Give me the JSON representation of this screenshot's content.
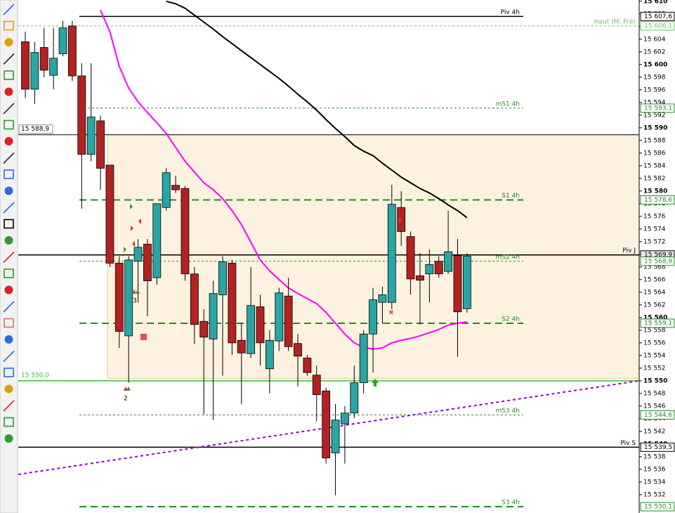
{
  "chart_data": {
    "type": "candlestick",
    "up_color": "#2aa5a5",
    "down_color": "#b32222",
    "ylim": [
      15529.1,
      15610.2
    ],
    "yticks": [
      {
        "value": 15532,
        "label": "15 532"
      },
      {
        "value": 15534,
        "label": "15 534"
      },
      {
        "value": 15536,
        "label": "15 536"
      },
      {
        "value": 15538,
        "label": "15 538"
      },
      {
        "value": 15540,
        "label": "15 540"
      },
      {
        "value": 15542,
        "label": "15 542"
      },
      {
        "value": 15544,
        "label": "15 544"
      },
      {
        "value": 15546,
        "label": "15 546"
      },
      {
        "value": 15548,
        "label": "15 548"
      },
      {
        "value": 15550,
        "label": "15 550"
      },
      {
        "value": 15552,
        "label": "15 552"
      },
      {
        "value": 15554,
        "label": "15 554"
      },
      {
        "value": 15556,
        "label": "15 556"
      },
      {
        "value": 15558,
        "label": "15 558"
      },
      {
        "value": 15560,
        "label": "15 560"
      },
      {
        "value": 15562,
        "label": "15 562"
      },
      {
        "value": 15564,
        "label": "15 564"
      },
      {
        "value": 15566,
        "label": "15 566"
      },
      {
        "value": 15568,
        "label": "15 568"
      },
      {
        "value": 15570,
        "label": "15 570"
      },
      {
        "value": 15572,
        "label": "15 572"
      },
      {
        "value": 15574,
        "label": "15 574"
      },
      {
        "value": 15576,
        "label": "15 576"
      },
      {
        "value": 15578,
        "label": "15 578"
      },
      {
        "value": 15580,
        "label": "15 580"
      },
      {
        "value": 15582,
        "label": "15 582"
      },
      {
        "value": 15584,
        "label": "15 584"
      },
      {
        "value": 15586,
        "label": "15 586"
      },
      {
        "value": 15588,
        "label": "15 588"
      },
      {
        "value": 15590,
        "label": "15 590"
      },
      {
        "value": 15592,
        "label": "15 592"
      },
      {
        "value": 15594,
        "label": "15 594"
      },
      {
        "value": 15596,
        "label": "15 596"
      },
      {
        "value": 15598,
        "label": "15 598"
      },
      {
        "value": 15600,
        "label": "15 600"
      },
      {
        "value": 15602,
        "label": "15 602"
      },
      {
        "value": 15604,
        "label": "15 604"
      },
      {
        "value": 15606,
        "label": "15 606"
      },
      {
        "value": 15608,
        "label": "15 608"
      },
      {
        "value": 15610,
        "label": "15 610"
      }
    ],
    "ohlc": [
      [
        15603.6,
        15605.2,
        15594.7,
        15596.1
      ],
      [
        15596.1,
        15603.6,
        15593.8,
        15601.9
      ],
      [
        15602.7,
        15605.8,
        15598.0,
        15599.1
      ],
      [
        15598.3,
        15605.8,
        15596.1,
        15601.0
      ],
      [
        15601.7,
        15606.9,
        15601.3,
        15605.8
      ],
      [
        15606.1,
        15606.9,
        15597.4,
        15598.2
      ],
      [
        15598.2,
        15600.2,
        15577.2,
        15585.8
      ],
      [
        15585.8,
        15600.2,
        15584.7,
        15591.7
      ],
      [
        15591.1,
        15591.9,
        15580.2,
        15583.6
      ],
      [
        15584.1,
        15584.1,
        15568.0,
        15568.6
      ],
      [
        15568.6,
        15569.7,
        15555.2,
        15557.8
      ],
      [
        15557.1,
        15569.7,
        15549.7,
        15569.1
      ],
      [
        15568.9,
        15572.4,
        15562.4,
        15571.1
      ],
      [
        15571.6,
        15572.4,
        15560.2,
        15565.8
      ],
      [
        15566.3,
        15578.0,
        15565.2,
        15578.0
      ],
      [
        15577.4,
        15583.6,
        15576.9,
        15582.9
      ],
      [
        15580.9,
        15582.4,
        15579.7,
        15580.2
      ],
      [
        15580.4,
        15580.8,
        15565.8,
        15566.9
      ],
      [
        15566.9,
        15568.0,
        15555.8,
        15558.9
      ],
      [
        15559.4,
        15561.3,
        15544.7,
        15556.9
      ],
      [
        15556.6,
        15565.8,
        15543.8,
        15563.8
      ],
      [
        15563.6,
        15569.7,
        15550.8,
        15568.8
      ],
      [
        15568.6,
        15569.1,
        15554.1,
        15556.0
      ],
      [
        15556.4,
        15559.1,
        15546.3,
        15554.4
      ],
      [
        15554.3,
        15568.0,
        15553.6,
        15561.9
      ],
      [
        15561.7,
        15563.6,
        15552.4,
        15556.0
      ],
      [
        15551.9,
        15558.0,
        15548.0,
        15556.4
      ],
      [
        15556.3,
        15564.7,
        15554.7,
        15563.9
      ],
      [
        15563.4,
        15566.3,
        15554.7,
        15555.4
      ],
      [
        15555.9,
        15557.4,
        15549.1,
        15553.9
      ],
      [
        15553.6,
        15554.1,
        15550.8,
        15551.3
      ],
      [
        15550.9,
        15552.4,
        15543.6,
        15547.8
      ],
      [
        15548.4,
        15548.9,
        15536.9,
        15537.8
      ],
      [
        15538.6,
        15546.3,
        15531.9,
        15543.8
      ],
      [
        15543.2,
        15546.0,
        15536.9,
        15544.9
      ],
      [
        15544.9,
        15552.4,
        15544.1,
        15549.7
      ],
      [
        15549.7,
        15558.0,
        15548.0,
        15557.4
      ],
      [
        15557.4,
        15564.7,
        15551.3,
        15562.8
      ],
      [
        15562.4,
        15564.9,
        15559.1,
        15563.6
      ],
      [
        15562.4,
        15581.0,
        15561.3,
        15577.9
      ],
      [
        15577.4,
        15580.0,
        15571.3,
        15573.6
      ],
      [
        15572.8,
        15573.6,
        15563.6,
        15566.1
      ],
      [
        15566.6,
        15570.2,
        15558.9,
        15565.9
      ],
      [
        15566.9,
        15570.8,
        15562.4,
        15568.4
      ],
      [
        15568.9,
        15569.7,
        15566.3,
        15566.9
      ],
      [
        15567.3,
        15576.9,
        15566.9,
        15570.4
      ],
      [
        15569.8,
        15572.4,
        15553.8,
        15560.9
      ],
      [
        15561.4,
        15570.2,
        15560.8,
        15569.7
      ]
    ],
    "lines": [
      {
        "color": "#ff00ff",
        "values": [
          null,
          null,
          null,
          null,
          null,
          null,
          null,
          null,
          15608.6,
          15605.2,
          15599.7,
          15596.3,
          15594.1,
          15592.4,
          15590.8,
          15589.1,
          15586.9,
          15584.7,
          15583.0,
          15581.3,
          15580.2,
          15578.8,
          15576.9,
          15574.7,
          15571.9,
          15569.1,
          15567.4,
          15566.0,
          15564.7,
          15563.8,
          15563.0,
          15562.2,
          15560.8,
          15559.1,
          15557.4,
          15556.0,
          15555.3,
          15555.0,
          15555.2,
          15556.0,
          15556.4,
          15556.7,
          15557.1,
          15557.6,
          15558.1,
          15558.8,
          15559.1,
          15559.3
        ]
      },
      {
        "color": "#000000",
        "values": [
          null,
          null,
          null,
          null,
          null,
          null,
          null,
          null,
          null,
          null,
          null,
          null,
          null,
          null,
          null,
          15610.0,
          15609.6,
          15608.9,
          15607.8,
          15606.7,
          15605.6,
          15604.4,
          15603.3,
          15602.2,
          15601.1,
          15600.0,
          15598.9,
          15597.8,
          15596.6,
          15595.3,
          15594.1,
          15592.8,
          15591.3,
          15589.9,
          15588.6,
          15587.2,
          15586.3,
          15585.6,
          15584.4,
          15583.3,
          15582.2,
          15581.3,
          15580.4,
          15579.7,
          15578.8,
          15577.8,
          15576.9,
          15575.8
        ]
      }
    ],
    "trendline": {
      "color": "#9400d3",
      "start": 15535.2,
      "end": 15550.0
    },
    "zone": {
      "top": 15588.9,
      "bottom": 15550.4,
      "color": "#fdf2df",
      "border": "#e6c98c"
    },
    "levels": [
      {
        "label": "Piv 4h",
        "value": 15607.6,
        "value_label": "15 607,6",
        "color": "#000000",
        "style": "solid",
        "extent": "short"
      },
      {
        "label": "Haut (M. Pré)",
        "value": 15606.1,
        "value_label": "15 606,1",
        "color": "#66c266",
        "style": "dotted",
        "extent": "full"
      },
      {
        "label": "mS1 4h",
        "value": 15593.1,
        "value_label": "15 593,1",
        "color": "#2e8b2e",
        "style": "dotted",
        "extent": "short"
      },
      {
        "label": "S1 4h",
        "value": 15578.6,
        "value_label": "15 578,6",
        "color": "#228b22",
        "style": "dashed",
        "extent": "short"
      },
      {
        "label": "Piv J",
        "value": 15569.9,
        "value_label": "15 569,9",
        "color": "#000000",
        "style": "solid",
        "extent": "full"
      },
      {
        "label": "mS2 4h",
        "value": 15568.9,
        "value_label": "15 568,9",
        "color": "#2e8b2e",
        "style": "dotted",
        "extent": "short"
      },
      {
        "label": "S2 4h",
        "value": 15559.1,
        "value_label": "15 559,1",
        "color": "#228b22",
        "style": "dashed",
        "extent": "short"
      },
      {
        "label": "mS3 4h",
        "value": 15544.6,
        "value_label": "15 544,6",
        "color": "#2e8b2e",
        "style": "dotted",
        "extent": "short"
      },
      {
        "label": "Piv S",
        "value": 15539.5,
        "value_label": "15 539,5",
        "color": "#000000",
        "style": "solid",
        "extent": "full"
      },
      {
        "label": "S3 4h",
        "value": 15530.1,
        "value_label": "15 530,1",
        "color": "#228b22",
        "style": "dashed",
        "extent": "short"
      }
    ],
    "price_lines": [
      {
        "value": 15588.9,
        "value_label": "15 588,9",
        "color": "#000000"
      },
      {
        "value": 15550.0,
        "value_label": "15 550,0",
        "color": "#3cb83c"
      }
    ],
    "annotations": [
      "3",
      "2"
    ]
  }
}
